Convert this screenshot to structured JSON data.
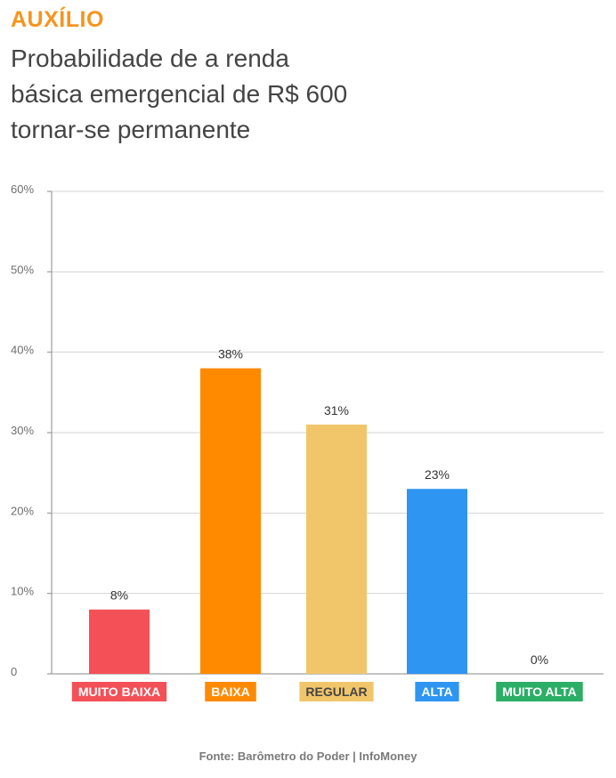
{
  "header": {
    "kicker": "AUXÍLIO",
    "kicker_color": "#F7941D",
    "title_lines": [
      "Probabilidade de a renda",
      "básica emergencial de R$ 600",
      "tornar-se permanente"
    ]
  },
  "chart_data": {
    "type": "bar",
    "title": "",
    "xlabel": "",
    "ylabel": "",
    "categories": [
      "MUITO BAIXA",
      "BAIXA",
      "REGULAR",
      "ALTA",
      "MUITO ALTA"
    ],
    "values": [
      8,
      38,
      31,
      23,
      0
    ],
    "value_labels": [
      "8%",
      "38%",
      "31%",
      "23%",
      "0%"
    ],
    "colors": [
      "#F45057",
      "#FF8A00",
      "#F1C66B",
      "#2E95F2",
      "#2BAE66"
    ],
    "ylim": [
      0,
      60
    ],
    "yticks": [
      0,
      10,
      20,
      30,
      40,
      50,
      60
    ],
    "ytick_labels": [
      "0",
      "10%",
      "20%",
      "30%",
      "40%",
      "50%",
      "60%"
    ],
    "grid": true,
    "legend": "none"
  },
  "footer": {
    "source": "Fonte: Barômetro do Poder | InfoMoney"
  }
}
